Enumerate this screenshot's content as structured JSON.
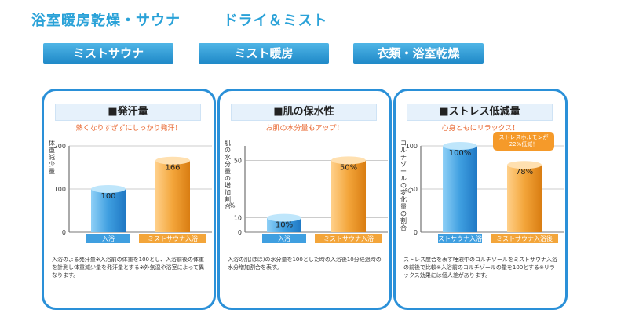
{
  "header": {
    "title": "浴室暖房乾燥・サウナ",
    "subtitle": "ドライ＆ミスト"
  },
  "tabs": [
    {
      "label": "ミストサウナ"
    },
    {
      "label": "ミスト暖房"
    },
    {
      "label": "衣類・浴室乾燥"
    }
  ],
  "colors": {
    "accent": "#2aa2d8",
    "blue_bar": "#3f9fe0",
    "orange_bar": "#f3a53a",
    "subtitle_text": "#e8642c"
  },
  "cards": [
    {
      "title": "■発汗量",
      "subtitle": "熱くなりすぎずにしっかり発汗！",
      "ylabel": "体重減少量",
      "note": "入浴のよる発汗量※入浴前の体重を100とし、入浴前後の体重を計測し体重減少量を発汗量とする※外気温や浴室によって異なります。",
      "chart_data": {
        "type": "bar",
        "categories": [
          "入浴",
          "ミストサウナ入浴"
        ],
        "values": [
          100,
          166
        ],
        "value_labels": [
          "100",
          "166"
        ],
        "ylim": [
          0,
          200
        ],
        "yticks": [
          "0",
          "100",
          "200"
        ],
        "yunit": ""
      }
    },
    {
      "title": "■肌の保水性",
      "subtitle": "お肌の水分量もアップ！",
      "ylabel": "肌の水分量の増加割合",
      "note": "入浴の肌(ほほ)の水分量を100とした時の入浴後10分経過時の水分増加割合を表す。",
      "chart_data": {
        "type": "bar",
        "categories": [
          "入浴",
          "ミストサウナ入浴"
        ],
        "values": [
          10,
          50
        ],
        "value_labels": [
          "10%",
          "50%"
        ],
        "ylim": [
          0,
          60
        ],
        "yticks": [
          "0",
          "10",
          "50"
        ],
        "yunit": "%"
      }
    },
    {
      "title": "■ストレス低減量",
      "subtitle": "心身ともにリラックス！",
      "ylabel": "コルチゾールの変化量の割合",
      "note": "ストレス度合を表す唾液中のコルチゾールをミストサウナ入浴の前後で比較※入浴前のコルチゾールの量を100とする※リラックス効果には個人差があります。",
      "callout": "ストレスホルモンが22%低減！",
      "chart_data": {
        "type": "bar",
        "categories": [
          "ミストサウナ入浴前",
          "ミストサウナ入浴後"
        ],
        "values": [
          100,
          78
        ],
        "value_labels": [
          "100%",
          "78%"
        ],
        "ylim": [
          0,
          100
        ],
        "yticks": [
          "0",
          "50",
          "100"
        ],
        "yunit": "%"
      }
    }
  ]
}
